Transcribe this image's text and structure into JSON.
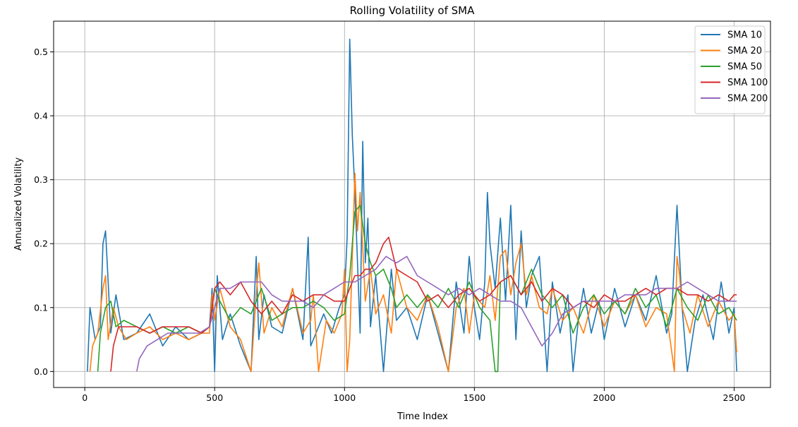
{
  "chart_data": {
    "type": "line",
    "title": "Rolling Volatility of SMA",
    "xlabel": "Time Index",
    "ylabel": "Annualized Volatility",
    "xlim": [
      -120,
      2640
    ],
    "ylim": [
      -0.025,
      0.548
    ],
    "xticks": [
      0,
      500,
      1000,
      1500,
      2000,
      2500
    ],
    "yticks": [
      0.0,
      0.1,
      0.2,
      0.3,
      0.4,
      0.5
    ],
    "xtick_labels": [
      "0",
      "500",
      "1000",
      "1500",
      "2000",
      "2500"
    ],
    "ytick_labels": [
      "0.0",
      "0.1",
      "0.2",
      "0.3",
      "0.4",
      "0.5"
    ],
    "grid": true,
    "legend_position": "top-right",
    "series": [
      {
        "name": "SMA 10",
        "color": "#1f77b4",
        "x": [
          10,
          20,
          40,
          60,
          70,
          80,
          100,
          120,
          150,
          200,
          250,
          300,
          350,
          400,
          450,
          480,
          490,
          500,
          510,
          530,
          560,
          600,
          640,
          660,
          670,
          690,
          720,
          760,
          800,
          840,
          860,
          870,
          890,
          920,
          950,
          980,
          1000,
          1010,
          1020,
          1030,
          1040,
          1060,
          1070,
          1080,
          1090,
          1100,
          1120,
          1150,
          1180,
          1200,
          1240,
          1280,
          1320,
          1360,
          1400,
          1430,
          1460,
          1480,
          1500,
          1520,
          1540,
          1550,
          1560,
          1580,
          1600,
          1620,
          1640,
          1660,
          1680,
          1700,
          1720,
          1750,
          1780,
          1800,
          1830,
          1860,
          1880,
          1900,
          1920,
          1950,
          1980,
          2000,
          2040,
          2080,
          2120,
          2160,
          2200,
          2240,
          2260,
          2280,
          2290,
          2300,
          2320,
          2350,
          2380,
          2420,
          2450,
          2480,
          2500,
          2510
        ],
        "values": [
          0.0,
          0.1,
          0.05,
          0.07,
          0.2,
          0.22,
          0.06,
          0.12,
          0.05,
          0.06,
          0.09,
          0.04,
          0.07,
          0.05,
          0.06,
          0.07,
          0.13,
          0.0,
          0.15,
          0.05,
          0.09,
          0.04,
          0.0,
          0.18,
          0.05,
          0.12,
          0.07,
          0.06,
          0.13,
          0.05,
          0.21,
          0.04,
          0.06,
          0.09,
          0.06,
          0.1,
          0.12,
          0.21,
          0.52,
          0.37,
          0.28,
          0.06,
          0.36,
          0.17,
          0.24,
          0.07,
          0.15,
          0.0,
          0.16,
          0.08,
          0.1,
          0.05,
          0.12,
          0.06,
          0.0,
          0.14,
          0.06,
          0.18,
          0.1,
          0.05,
          0.14,
          0.28,
          0.2,
          0.13,
          0.24,
          0.11,
          0.26,
          0.05,
          0.22,
          0.1,
          0.15,
          0.18,
          0.0,
          0.14,
          0.06,
          0.12,
          0.0,
          0.08,
          0.13,
          0.06,
          0.11,
          0.05,
          0.13,
          0.07,
          0.12,
          0.08,
          0.15,
          0.06,
          0.09,
          0.26,
          0.18,
          0.1,
          0.0,
          0.08,
          0.12,
          0.05,
          0.14,
          0.06,
          0.1,
          0.0
        ]
      },
      {
        "name": "SMA 20",
        "color": "#ff7f0e",
        "x": [
          20,
          30,
          50,
          70,
          80,
          90,
          110,
          130,
          160,
          200,
          250,
          300,
          350,
          400,
          450,
          480,
          490,
          500,
          520,
          560,
          600,
          640,
          660,
          670,
          690,
          720,
          760,
          800,
          840,
          870,
          880,
          900,
          930,
          960,
          990,
          1000,
          1010,
          1020,
          1040,
          1050,
          1060,
          1080,
          1100,
          1120,
          1150,
          1180,
          1200,
          1240,
          1280,
          1320,
          1360,
          1400,
          1430,
          1460,
          1480,
          1500,
          1540,
          1560,
          1580,
          1600,
          1620,
          1640,
          1660,
          1680,
          1700,
          1720,
          1750,
          1780,
          1800,
          1840,
          1880,
          1920,
          1960,
          2000,
          2040,
          2080,
          2120,
          2160,
          2200,
          2240,
          2270,
          2280,
          2290,
          2300,
          2330,
          2360,
          2400,
          2440,
          2480,
          2500,
          2510
        ],
        "values": [
          0.0,
          0.04,
          0.06,
          0.13,
          0.15,
          0.05,
          0.1,
          0.07,
          0.05,
          0.06,
          0.07,
          0.05,
          0.06,
          0.05,
          0.06,
          0.06,
          0.12,
          0.08,
          0.13,
          0.07,
          0.05,
          0.0,
          0.12,
          0.17,
          0.06,
          0.1,
          0.07,
          0.13,
          0.06,
          0.08,
          0.12,
          0.0,
          0.08,
          0.06,
          0.09,
          0.16,
          0.0,
          0.05,
          0.31,
          0.22,
          0.28,
          0.11,
          0.16,
          0.09,
          0.12,
          0.06,
          0.16,
          0.1,
          0.08,
          0.12,
          0.07,
          0.0,
          0.1,
          0.13,
          0.06,
          0.12,
          0.1,
          0.15,
          0.08,
          0.18,
          0.19,
          0.12,
          0.17,
          0.2,
          0.12,
          0.15,
          0.1,
          0.09,
          0.13,
          0.08,
          0.1,
          0.06,
          0.12,
          0.07,
          0.11,
          0.09,
          0.12,
          0.07,
          0.1,
          0.09,
          0.0,
          0.18,
          0.15,
          0.1,
          0.06,
          0.12,
          0.07,
          0.11,
          0.08,
          0.09,
          0.03
        ]
      },
      {
        "name": "SMA 50",
        "color": "#2ca02c",
        "x": [
          50,
          60,
          80,
          100,
          120,
          150,
          200,
          250,
          300,
          350,
          400,
          450,
          480,
          500,
          520,
          560,
          600,
          640,
          680,
          720,
          760,
          800,
          840,
          880,
          920,
          960,
          1000,
          1020,
          1040,
          1060,
          1080,
          1100,
          1120,
          1150,
          1180,
          1200,
          1240,
          1280,
          1320,
          1360,
          1400,
          1440,
          1480,
          1520,
          1560,
          1580,
          1590,
          1600,
          1640,
          1680,
          1720,
          1760,
          1800,
          1840,
          1880,
          1920,
          1960,
          2000,
          2040,
          2080,
          2120,
          2160,
          2200,
          2240,
          2280,
          2320,
          2360,
          2400,
          2440,
          2480,
          2510
        ],
        "values": [
          0.0,
          0.06,
          0.1,
          0.11,
          0.07,
          0.08,
          0.07,
          0.06,
          0.07,
          0.06,
          0.07,
          0.06,
          0.07,
          0.13,
          0.11,
          0.08,
          0.1,
          0.09,
          0.13,
          0.08,
          0.09,
          0.1,
          0.1,
          0.11,
          0.1,
          0.08,
          0.09,
          0.15,
          0.25,
          0.26,
          0.2,
          0.17,
          0.15,
          0.16,
          0.13,
          0.1,
          0.12,
          0.1,
          0.12,
          0.1,
          0.13,
          0.1,
          0.14,
          0.1,
          0.08,
          0.0,
          0.0,
          0.14,
          0.15,
          0.12,
          0.16,
          0.12,
          0.1,
          0.12,
          0.06,
          0.1,
          0.12,
          0.09,
          0.11,
          0.09,
          0.13,
          0.1,
          0.12,
          0.07,
          0.13,
          0.1,
          0.08,
          0.12,
          0.09,
          0.1,
          0.08
        ]
      },
      {
        "name": "SMA 100",
        "color": "#d62728",
        "x": [
          100,
          110,
          130,
          160,
          200,
          250,
          300,
          350,
          400,
          450,
          480,
          500,
          520,
          560,
          600,
          640,
          680,
          720,
          760,
          800,
          840,
          880,
          920,
          960,
          1000,
          1020,
          1040,
          1060,
          1080,
          1100,
          1120,
          1150,
          1170,
          1200,
          1240,
          1280,
          1320,
          1360,
          1400,
          1440,
          1480,
          1520,
          1560,
          1600,
          1640,
          1680,
          1720,
          1760,
          1800,
          1840,
          1880,
          1920,
          1960,
          2000,
          2040,
          2080,
          2120,
          2160,
          2200,
          2240,
          2280,
          2320,
          2360,
          2400,
          2440,
          2480,
          2500,
          2510
        ],
        "values": [
          0.0,
          0.04,
          0.07,
          0.07,
          0.07,
          0.06,
          0.07,
          0.07,
          0.07,
          0.06,
          0.07,
          0.13,
          0.14,
          0.12,
          0.14,
          0.11,
          0.09,
          0.11,
          0.09,
          0.12,
          0.11,
          0.12,
          0.12,
          0.11,
          0.11,
          0.13,
          0.15,
          0.15,
          0.16,
          0.16,
          0.17,
          0.2,
          0.21,
          0.16,
          0.15,
          0.14,
          0.11,
          0.12,
          0.1,
          0.12,
          0.13,
          0.11,
          0.12,
          0.14,
          0.15,
          0.12,
          0.14,
          0.11,
          0.13,
          0.12,
          0.1,
          0.11,
          0.1,
          0.12,
          0.11,
          0.11,
          0.12,
          0.13,
          0.12,
          0.13,
          0.13,
          0.12,
          0.12,
          0.11,
          0.12,
          0.11,
          0.12,
          0.12
        ]
      },
      {
        "name": "SMA 200",
        "color": "#9467bd",
        "x": [
          200,
          210,
          240,
          280,
          320,
          360,
          400,
          440,
          480,
          500,
          520,
          560,
          600,
          640,
          680,
          720,
          760,
          800,
          840,
          880,
          920,
          960,
          1000,
          1040,
          1080,
          1120,
          1160,
          1200,
          1240,
          1280,
          1320,
          1360,
          1400,
          1440,
          1480,
          1520,
          1560,
          1600,
          1640,
          1680,
          1720,
          1760,
          1800,
          1840,
          1880,
          1920,
          1960,
          2000,
          2040,
          2080,
          2120,
          2160,
          2200,
          2240,
          2280,
          2320,
          2360,
          2400,
          2440,
          2480,
          2510
        ],
        "values": [
          0.0,
          0.02,
          0.04,
          0.05,
          0.06,
          0.06,
          0.06,
          0.06,
          0.07,
          0.1,
          0.13,
          0.13,
          0.14,
          0.14,
          0.14,
          0.12,
          0.11,
          0.11,
          0.11,
          0.1,
          0.12,
          0.13,
          0.14,
          0.14,
          0.15,
          0.16,
          0.18,
          0.17,
          0.18,
          0.15,
          0.14,
          0.13,
          0.12,
          0.13,
          0.12,
          0.13,
          0.12,
          0.11,
          0.11,
          0.1,
          0.07,
          0.04,
          0.06,
          0.09,
          0.1,
          0.11,
          0.11,
          0.11,
          0.11,
          0.12,
          0.12,
          0.12,
          0.13,
          0.13,
          0.13,
          0.14,
          0.13,
          0.12,
          0.11,
          0.11,
          0.11
        ]
      }
    ]
  }
}
